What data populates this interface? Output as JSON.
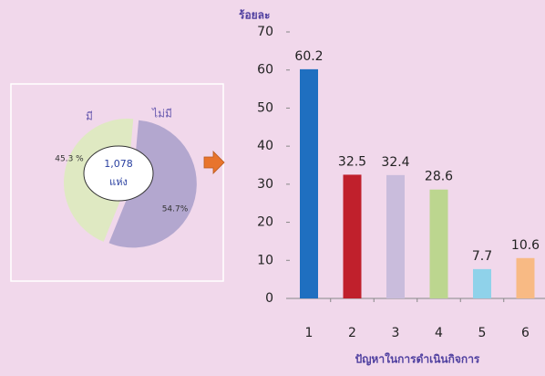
{
  "chart_data": [
    {
      "type": "pie",
      "categories": [
        "มี",
        "ไม่มี"
      ],
      "values": [
        45.3,
        54.7
      ],
      "value_labels": [
        "45.3 %",
        "54.7%"
      ],
      "colors": [
        "#dfe9c2",
        "#b3a7cf"
      ],
      "center_text": [
        "1,078",
        "แห่ง"
      ]
    },
    {
      "type": "bar",
      "y_label": "ร้อยละ",
      "x_label": "ปัญหาในการดำเนินกิจการ",
      "categories": [
        "1",
        "2",
        "3",
        "4",
        "5",
        "6"
      ],
      "values": [
        60.2,
        32.5,
        32.4,
        28.6,
        7.7,
        10.6
      ],
      "colors": [
        "#1f6fc0",
        "#c0202c",
        "#c9bcdc",
        "#bcd68f",
        "#8fd2ea",
        "#f8ba84"
      ],
      "ylim": [
        0,
        70
      ],
      "yticks": [
        0,
        10,
        20,
        30,
        40,
        50,
        60,
        70
      ]
    }
  ]
}
